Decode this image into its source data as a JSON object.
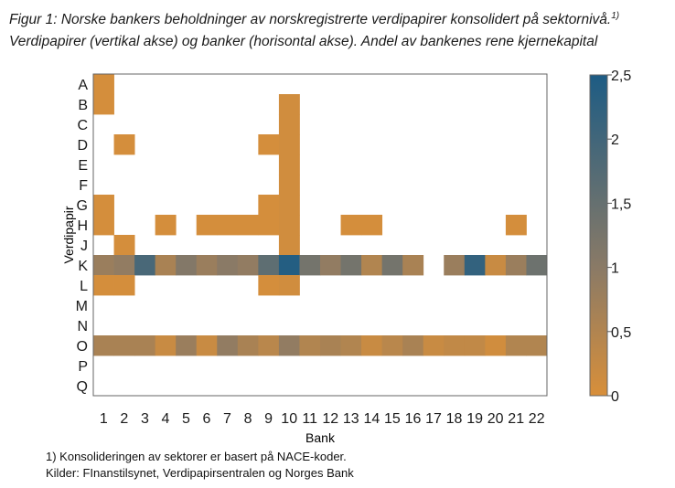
{
  "title_line1": "Figur 1: Norske bankers beholdninger av norskregistrerte verdipapirer konsolidert på sektornivå.",
  "title_footnote_mark": "1)",
  "title_line2": "Verdipapirer (vertikal akse) og banker (horisontal akse). Andel av bankenes rene kjernekapital",
  "note1": "1) Konsolideringen av sektorer er basert på NACE-koder.",
  "note2": "Kilder: FInanstilsynet, Verdipapirsentralen og Norges Bank",
  "colors": {
    "low": "#d88f3a",
    "mid": "#8a7a66",
    "high": "#1d5c84",
    "border": "#666666"
  },
  "chart_data": {
    "type": "heatmap",
    "xlabel": "Bank",
    "ylabel": "Verdipapir",
    "x_categories": [
      "1",
      "2",
      "3",
      "4",
      "5",
      "6",
      "7",
      "8",
      "9",
      "10",
      "11",
      "12",
      "13",
      "14",
      "15",
      "16",
      "17",
      "18",
      "19",
      "20",
      "21",
      "22"
    ],
    "y_categories": [
      "A",
      "B",
      "C",
      "D",
      "E",
      "F",
      "G",
      "H",
      "J",
      "K",
      "L",
      "M",
      "N",
      "O",
      "P",
      "Q"
    ],
    "colorbar": {
      "min": 0,
      "max": 2.5,
      "ticks": [
        "0",
        "0,5",
        "1",
        "1,5",
        "2",
        "2,5"
      ]
    },
    "cells": [
      {
        "y": "A",
        "x": "1",
        "value": 0.05
      },
      {
        "y": "B",
        "x": "1",
        "value": 0.05
      },
      {
        "y": "B",
        "x": "10",
        "value": 0.1
      },
      {
        "y": "C",
        "x": "10",
        "value": 0.1
      },
      {
        "y": "D",
        "x": "2",
        "value": 0.05
      },
      {
        "y": "D",
        "x": "9",
        "value": 0.05
      },
      {
        "y": "D",
        "x": "10",
        "value": 0.1
      },
      {
        "y": "E",
        "x": "10",
        "value": 0.1
      },
      {
        "y": "F",
        "x": "10",
        "value": 0.1
      },
      {
        "y": "G",
        "x": "1",
        "value": 0.05
      },
      {
        "y": "G",
        "x": "9",
        "value": 0.05
      },
      {
        "y": "G",
        "x": "10",
        "value": 0.1
      },
      {
        "y": "H",
        "x": "1",
        "value": 0.05
      },
      {
        "y": "H",
        "x": "4",
        "value": 0.05
      },
      {
        "y": "H",
        "x": "6",
        "value": 0.05
      },
      {
        "y": "H",
        "x": "7",
        "value": 0.05
      },
      {
        "y": "H",
        "x": "8",
        "value": 0.05
      },
      {
        "y": "H",
        "x": "9",
        "value": 0.05
      },
      {
        "y": "H",
        "x": "10",
        "value": 0.1
      },
      {
        "y": "H",
        "x": "13",
        "value": 0.05
      },
      {
        "y": "H",
        "x": "14",
        "value": 0.05
      },
      {
        "y": "H",
        "x": "21",
        "value": 0.05
      },
      {
        "y": "J",
        "x": "2",
        "value": 0.05
      },
      {
        "y": "J",
        "x": "10",
        "value": 0.1
      },
      {
        "y": "K",
        "x": "1",
        "value": 0.8
      },
      {
        "y": "K",
        "x": "2",
        "value": 0.9
      },
      {
        "y": "K",
        "x": "3",
        "value": 1.9
      },
      {
        "y": "K",
        "x": "4",
        "value": 0.6
      },
      {
        "y": "K",
        "x": "5",
        "value": 1.1
      },
      {
        "y": "K",
        "x": "6",
        "value": 0.8
      },
      {
        "y": "K",
        "x": "7",
        "value": 1.0
      },
      {
        "y": "K",
        "x": "8",
        "value": 0.9
      },
      {
        "y": "K",
        "x": "9",
        "value": 1.6
      },
      {
        "y": "K",
        "x": "10",
        "value": 2.4
      },
      {
        "y": "K",
        "x": "11",
        "value": 1.3
      },
      {
        "y": "K",
        "x": "12",
        "value": 0.9
      },
      {
        "y": "K",
        "x": "13",
        "value": 1.3
      },
      {
        "y": "K",
        "x": "14",
        "value": 0.5
      },
      {
        "y": "K",
        "x": "15",
        "value": 1.3
      },
      {
        "y": "K",
        "x": "16",
        "value": 0.6
      },
      {
        "y": "K",
        "x": "18",
        "value": 0.8
      },
      {
        "y": "K",
        "x": "19",
        "value": 2.2
      },
      {
        "y": "K",
        "x": "20",
        "value": 0.2
      },
      {
        "y": "K",
        "x": "21",
        "value": 0.8
      },
      {
        "y": "K",
        "x": "22",
        "value": 1.4
      },
      {
        "y": "L",
        "x": "1",
        "value": 0.05
      },
      {
        "y": "L",
        "x": "2",
        "value": 0.05
      },
      {
        "y": "L",
        "x": "9",
        "value": 0.05
      },
      {
        "y": "L",
        "x": "10",
        "value": 0.1
      },
      {
        "y": "O",
        "x": "1",
        "value": 0.6
      },
      {
        "y": "O",
        "x": "2",
        "value": 0.6
      },
      {
        "y": "O",
        "x": "3",
        "value": 0.6
      },
      {
        "y": "O",
        "x": "4",
        "value": 0.2
      },
      {
        "y": "O",
        "x": "5",
        "value": 0.8
      },
      {
        "y": "O",
        "x": "6",
        "value": 0.2
      },
      {
        "y": "O",
        "x": "7",
        "value": 0.9
      },
      {
        "y": "O",
        "x": "8",
        "value": 0.6
      },
      {
        "y": "O",
        "x": "9",
        "value": 0.4
      },
      {
        "y": "O",
        "x": "10",
        "value": 0.9
      },
      {
        "y": "O",
        "x": "11",
        "value": 0.5
      },
      {
        "y": "O",
        "x": "12",
        "value": 0.6
      },
      {
        "y": "O",
        "x": "13",
        "value": 0.5
      },
      {
        "y": "O",
        "x": "14",
        "value": 0.2
      },
      {
        "y": "O",
        "x": "15",
        "value": 0.4
      },
      {
        "y": "O",
        "x": "16",
        "value": 0.6
      },
      {
        "y": "O",
        "x": "17",
        "value": 0.2
      },
      {
        "y": "O",
        "x": "18",
        "value": 0.3
      },
      {
        "y": "O",
        "x": "19",
        "value": 0.3
      },
      {
        "y": "O",
        "x": "20",
        "value": 0.1
      },
      {
        "y": "O",
        "x": "21",
        "value": 0.5
      },
      {
        "y": "O",
        "x": "22",
        "value": 0.5
      }
    ]
  }
}
